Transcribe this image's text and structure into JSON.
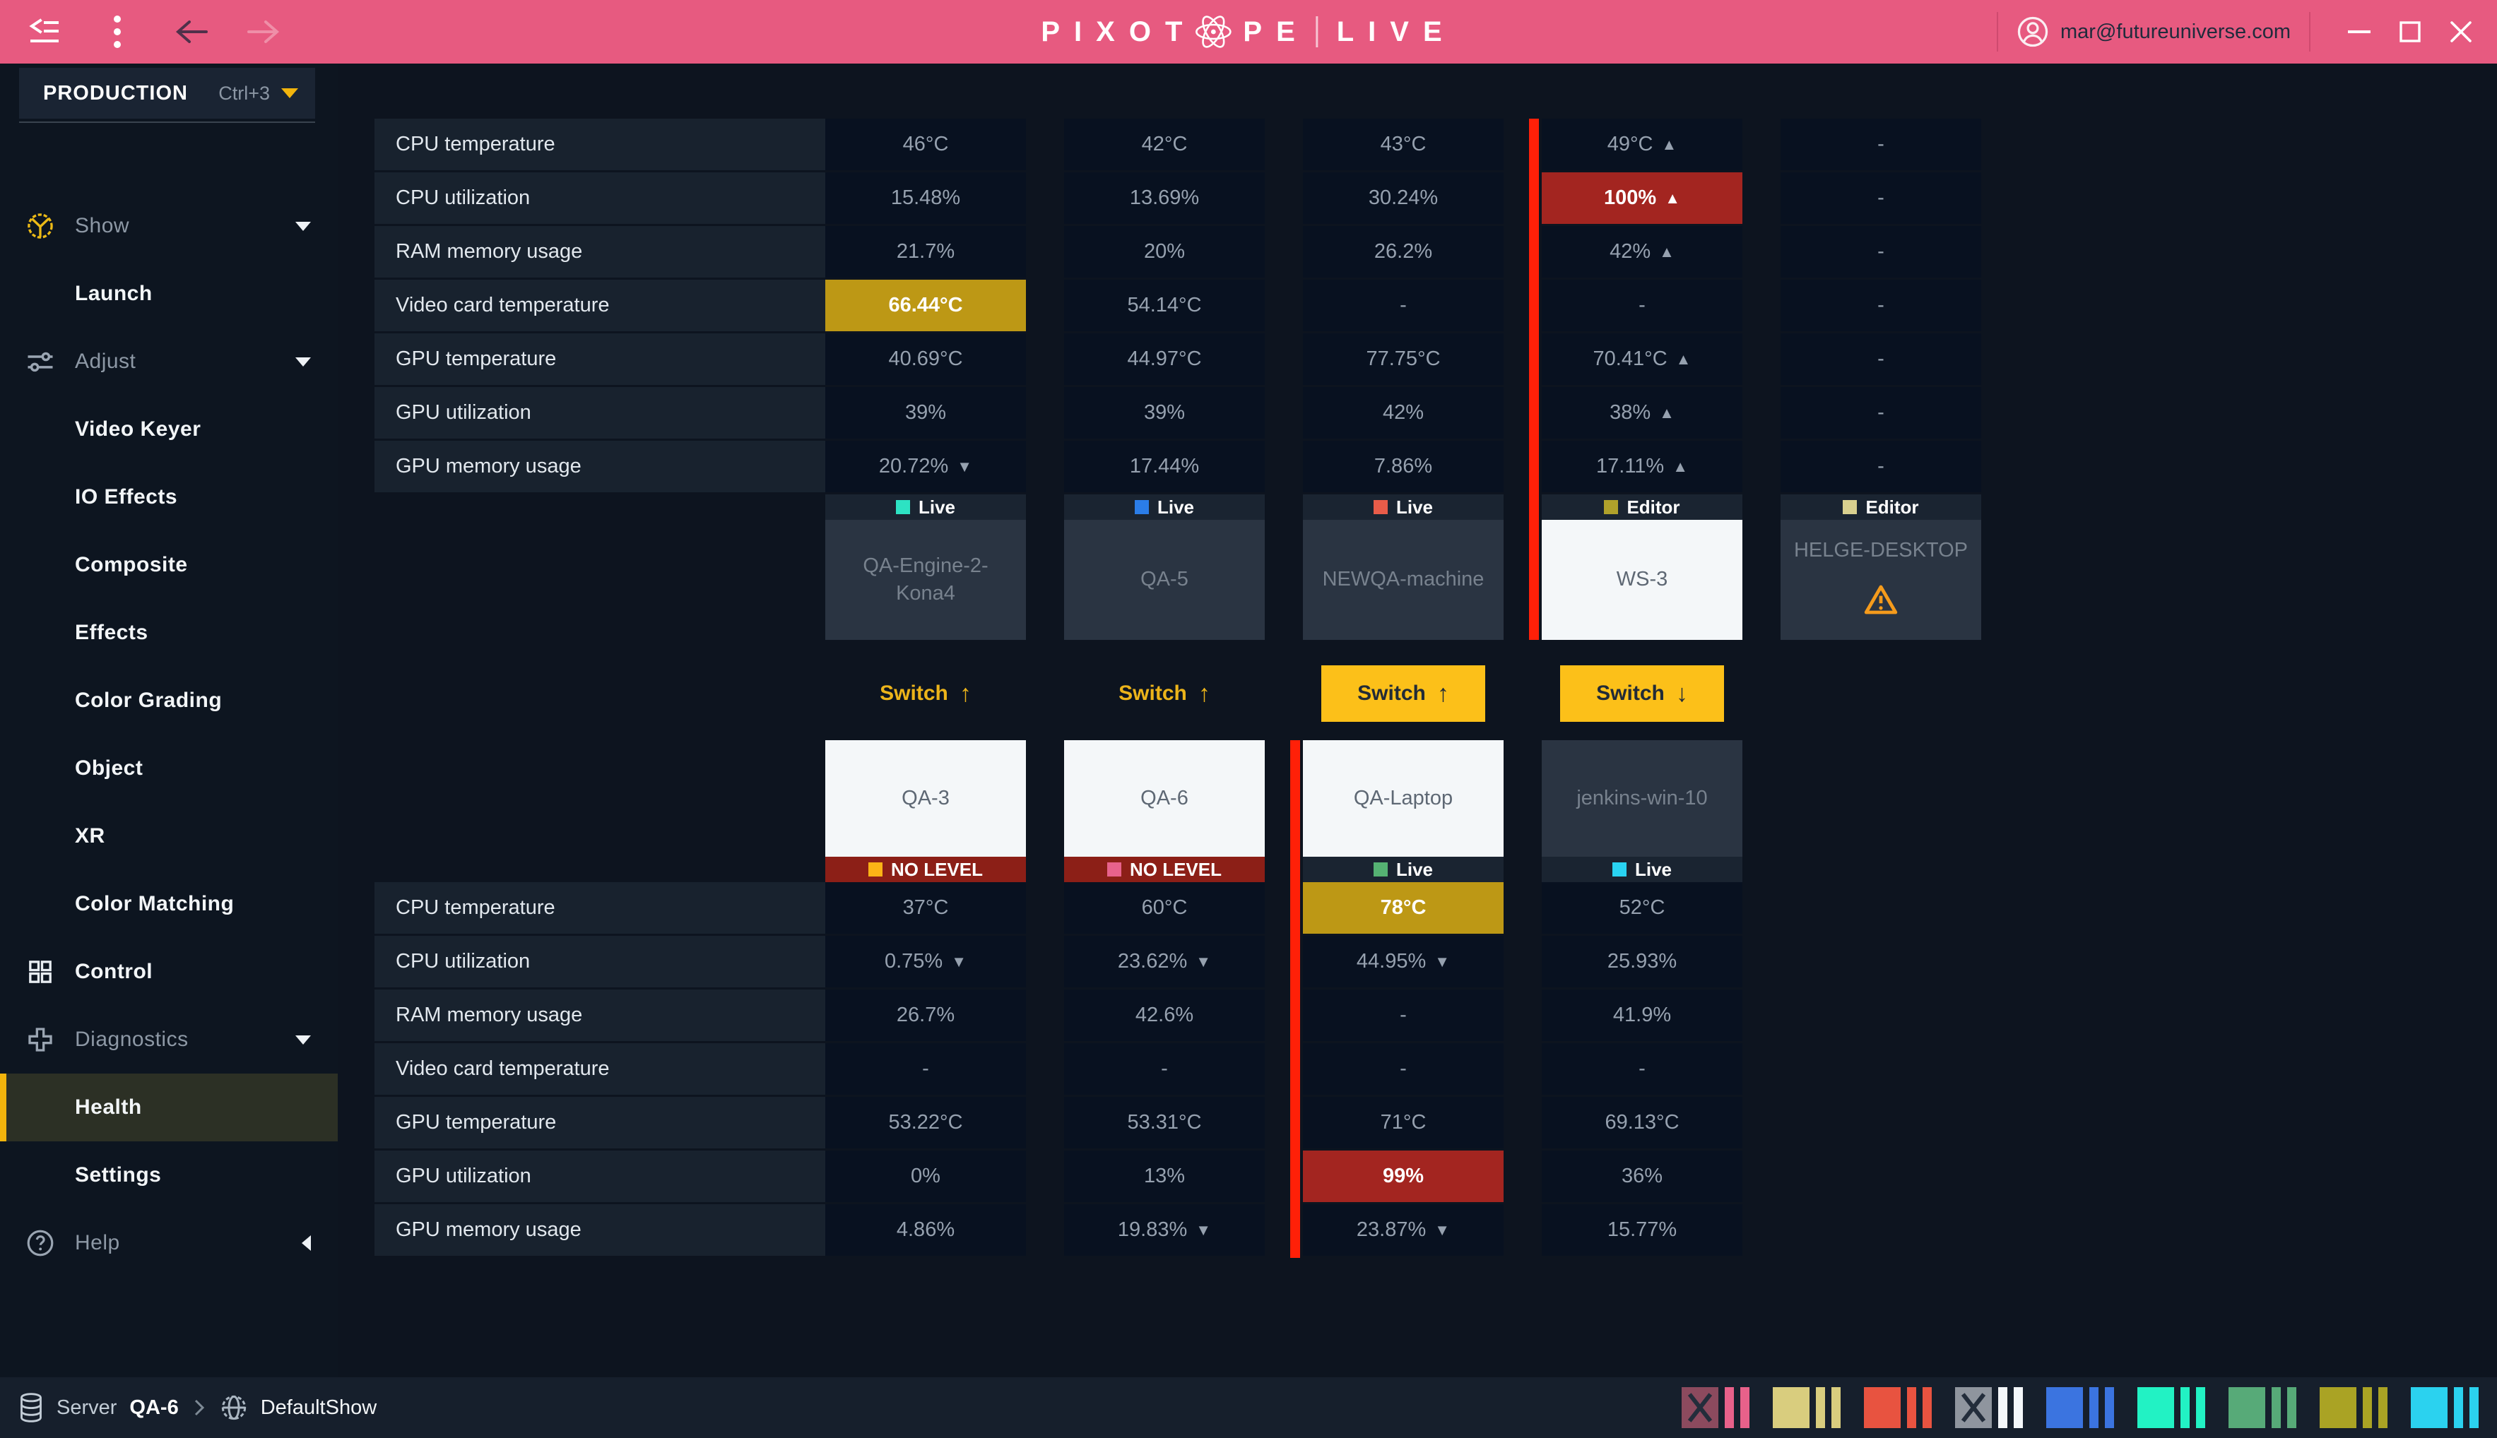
{
  "topbar": {
    "logo": {
      "part1": "PIXOT",
      "part2": "PE",
      "live": "LIVE"
    },
    "user_email": "mar@futureuniverse.com"
  },
  "sidebar": {
    "production_label": "PRODUCTION",
    "production_shortcut": "Ctrl+3",
    "menu": [
      {
        "label": "Show",
        "type": "top",
        "icon": "show",
        "chevron": "down"
      },
      {
        "label": "Launch",
        "type": "sub"
      },
      {
        "label": "Adjust",
        "type": "top",
        "icon": "adjust",
        "chevron": "down"
      },
      {
        "label": "Video Keyer",
        "type": "sub"
      },
      {
        "label": "IO Effects",
        "type": "sub"
      },
      {
        "label": "Composite",
        "type": "sub"
      },
      {
        "label": "Effects",
        "type": "sub"
      },
      {
        "label": "Color Grading",
        "type": "sub"
      },
      {
        "label": "Object",
        "type": "sub"
      },
      {
        "label": "XR",
        "type": "sub"
      },
      {
        "label": "Color Matching",
        "type": "sub"
      },
      {
        "label": "Control",
        "type": "top",
        "icon": "control",
        "bold": true
      },
      {
        "label": "Diagnostics",
        "type": "top",
        "icon": "diagnostics",
        "chevron": "down"
      },
      {
        "label": "Health",
        "type": "sub",
        "active": true
      },
      {
        "label": "Settings",
        "type": "sub"
      },
      {
        "label": "Help",
        "type": "top",
        "icon": "help",
        "chevron": "left"
      }
    ]
  },
  "health": {
    "metric_labels": [
      "CPU temperature",
      "CPU utilization",
      "RAM memory usage",
      "Video card temperature",
      "GPU temperature",
      "GPU utilization",
      "GPU memory usage"
    ],
    "top_machines": [
      {
        "name": "QA-Engine-2-Kona4",
        "status": "Live",
        "status_type": "live",
        "status_color": "#2de2c3",
        "card": "dark",
        "values": [
          {
            "t": "46°C"
          },
          {
            "t": "15.48%"
          },
          {
            "t": "21.7%"
          },
          {
            "t": "66.44°C",
            "h": "yellow"
          },
          {
            "t": "40.69°C"
          },
          {
            "t": "39%"
          },
          {
            "t": "20.72%",
            "a": "down"
          }
        ]
      },
      {
        "name": "QA-5",
        "status": "Live",
        "status_type": "live",
        "status_color": "#2b7de8",
        "card": "dark",
        "values": [
          {
            "t": "42°C"
          },
          {
            "t": "13.69%"
          },
          {
            "t": "20%"
          },
          {
            "t": "54.14°C"
          },
          {
            "t": "44.97°C"
          },
          {
            "t": "39%"
          },
          {
            "t": "17.44%"
          }
        ]
      },
      {
        "name": "NEWQA-machine",
        "status": "Live",
        "status_type": "live",
        "status_color": "#e85c49",
        "card": "dark",
        "values": [
          {
            "t": "43°C"
          },
          {
            "t": "30.24%"
          },
          {
            "t": "26.2%"
          },
          {
            "t": "-"
          },
          {
            "t": "77.75°C"
          },
          {
            "t": "42%"
          },
          {
            "t": "7.86%"
          }
        ]
      },
      {
        "name": "WS-3",
        "status": "Editor",
        "status_type": "live",
        "status_color": "#b0a12b",
        "card": "white",
        "red_bar": true,
        "values": [
          {
            "t": "49°C",
            "a": "up"
          },
          {
            "t": "100%",
            "a": "up",
            "h": "red"
          },
          {
            "t": "42%",
            "a": "up"
          },
          {
            "t": "-"
          },
          {
            "t": "70.41°C",
            "a": "up"
          },
          {
            "t": "38%",
            "a": "up"
          },
          {
            "t": "17.11%",
            "a": "up"
          }
        ]
      },
      {
        "name": "HELGE-DESKTOP",
        "status": "Editor",
        "status_type": "live",
        "status_color": "#d9d08f",
        "card": "dark",
        "warning": true,
        "values": [
          {
            "t": "-"
          },
          {
            "t": "-"
          },
          {
            "t": "-"
          },
          {
            "t": "-"
          },
          {
            "t": "-"
          },
          {
            "t": "-"
          },
          {
            "t": "-"
          }
        ]
      }
    ],
    "switches": [
      {
        "label": "Switch",
        "direction": "up",
        "filled": false
      },
      {
        "label": "Switch",
        "direction": "up",
        "filled": false
      },
      {
        "label": "Switch",
        "direction": "up",
        "filled": true
      },
      {
        "label": "Switch",
        "direction": "down",
        "filled": true
      }
    ],
    "bottom_machines": [
      {
        "name": "QA-3",
        "card": "white",
        "status": "NO LEVEL",
        "status_type": "nolevel",
        "status_color": "#fcb316",
        "values": [
          {
            "t": "37°C"
          },
          {
            "t": "0.75%",
            "a": "down"
          },
          {
            "t": "26.7%"
          },
          {
            "t": "-"
          },
          {
            "t": "53.22°C"
          },
          {
            "t": "0%"
          },
          {
            "t": "4.86%"
          }
        ]
      },
      {
        "name": "QA-6",
        "card": "white",
        "status": "NO LEVEL",
        "status_type": "nolevel",
        "status_color": "#e8628c",
        "values": [
          {
            "t": "60°C"
          },
          {
            "t": "23.62%",
            "a": "down"
          },
          {
            "t": "42.6%"
          },
          {
            "t": "-"
          },
          {
            "t": "53.31°C"
          },
          {
            "t": "13%"
          },
          {
            "t": "19.83%",
            "a": "down"
          }
        ]
      },
      {
        "name": "QA-Laptop",
        "card": "white",
        "status": "Live",
        "status_type": "live",
        "status_color": "#55b273",
        "red_bar": true,
        "values": [
          {
            "t": "78°C",
            "h": "yellow"
          },
          {
            "t": "44.95%",
            "a": "down"
          },
          {
            "t": "-"
          },
          {
            "t": "-"
          },
          {
            "t": "71°C"
          },
          {
            "t": "99%",
            "h": "red"
          },
          {
            "t": "23.87%",
            "a": "down"
          }
        ]
      },
      {
        "name": "jenkins-win-10",
        "card": "dark",
        "status": "Live",
        "status_type": "live",
        "status_color": "#29d3f2",
        "values": [
          {
            "t": "52°C"
          },
          {
            "t": "25.93%"
          },
          {
            "t": "41.9%"
          },
          {
            "t": "-"
          },
          {
            "t": "69.13°C"
          },
          {
            "t": "36%"
          },
          {
            "t": "15.77%"
          }
        ]
      }
    ]
  },
  "footer": {
    "server_label": "Server",
    "server_name": "QA-6",
    "show_name": "DefaultShow",
    "indicators": [
      {
        "block": "#8c4a5e",
        "bars": "#e8618a",
        "crossed": true
      },
      {
        "block": "#d9cd7e",
        "bars": "#d9cd7e",
        "crossed": false
      },
      {
        "block": "#e85340",
        "bars": "#e85340",
        "crossed": false
      },
      {
        "block": "#8f959e",
        "bars": "#f4f7fa",
        "crossed": true
      },
      {
        "block": "#3b74e0",
        "bars": "#3b74e0",
        "crossed": false
      },
      {
        "block": "#22f2c4",
        "bars": "#22f2c4",
        "crossed": false
      },
      {
        "block": "#57aa78",
        "bars": "#57aa78",
        "crossed": false
      },
      {
        "block": "#aaa324",
        "bars": "#aaa324",
        "crossed": false
      },
      {
        "block": "#2bd2ef",
        "bars": "#2bd2ef",
        "crossed": false
      }
    ]
  }
}
